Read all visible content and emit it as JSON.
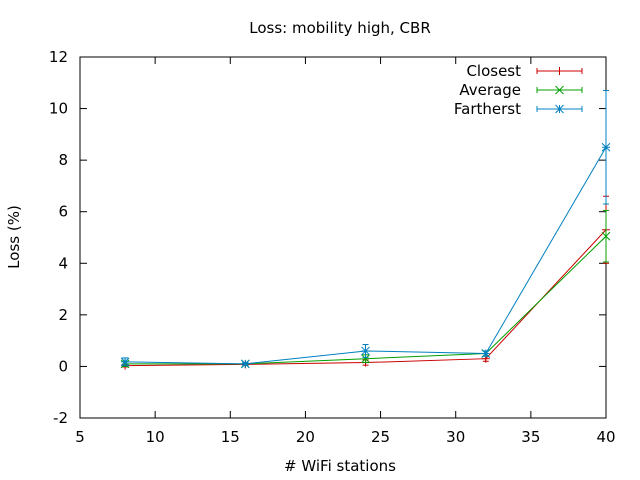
{
  "chart_data": {
    "type": "line",
    "title": "Loss: mobility high, CBR",
    "xlabel": "# WiFi stations",
    "ylabel": "Loss (%)",
    "xlim": [
      5,
      40
    ],
    "ylim": [
      -2,
      12
    ],
    "xticks": [
      5,
      10,
      15,
      20,
      25,
      30,
      35,
      40
    ],
    "yticks": [
      -2,
      0,
      2,
      4,
      6,
      8,
      10,
      12
    ],
    "grid": false,
    "legend_position": "top-right",
    "x": [
      8,
      16,
      24,
      32,
      40
    ],
    "series": [
      {
        "name": "Closest",
        "color": "#cc0000",
        "marker": "plus",
        "values": [
          0.03,
          0.08,
          0.15,
          0.3,
          5.3
        ],
        "errors": [
          0.05,
          0.04,
          0.1,
          0.1,
          1.3
        ]
      },
      {
        "name": "Average",
        "color": "#00a000",
        "marker": "cross",
        "values": [
          0.1,
          0.1,
          0.3,
          0.5,
          5.05
        ],
        "errors": [
          0.1,
          0.05,
          0.15,
          0.1,
          1.0
        ]
      },
      {
        "name": "Fartherst",
        "color": "#0080c0",
        "marker": "asterisk",
        "values": [
          0.18,
          0.1,
          0.6,
          0.5,
          8.5
        ],
        "errors": [
          0.15,
          0.05,
          0.25,
          0.1,
          2.2
        ]
      }
    ]
  }
}
